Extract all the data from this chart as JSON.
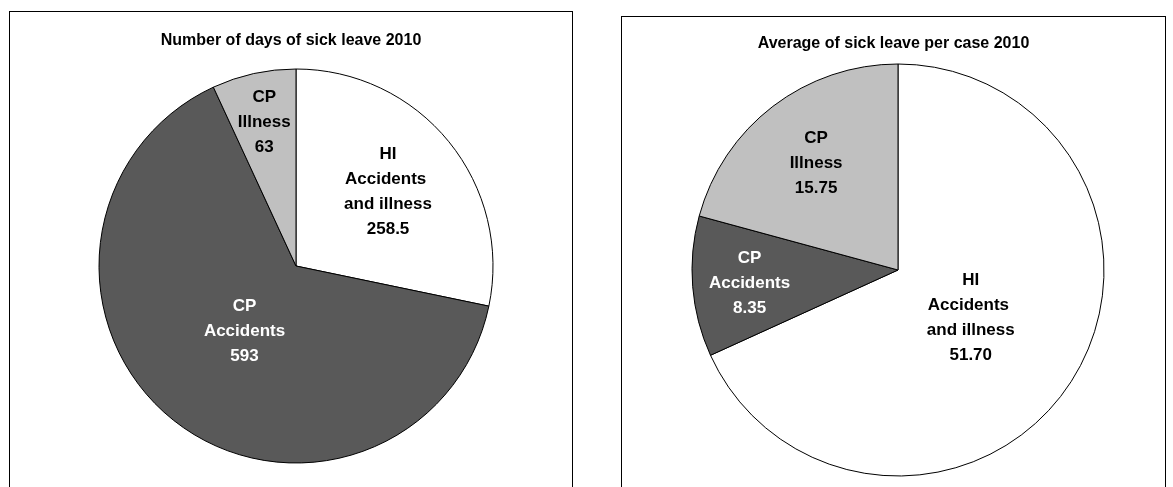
{
  "chart_data": [
    {
      "type": "pie",
      "title": "Number of days of sick leave 2010",
      "categories": [
        "HI Accidents and illness",
        "CP Accidents",
        "CP Illness"
      ],
      "values": [
        258.5,
        593,
        63
      ],
      "colors": [
        "#ffffff",
        "#595959",
        "#c0c0c0"
      ],
      "data_labels": true
    },
    {
      "type": "pie",
      "title": "Average of sick leave per case 2010",
      "categories": [
        "HI Accidents and illness",
        "CP Accidents",
        "CP Illness"
      ],
      "values": [
        51.7,
        8.35,
        15.75
      ],
      "value_labels": [
        "51.70",
        "8.35",
        "15.75"
      ],
      "colors": [
        "#ffffff",
        "#595959",
        "#c0c0c0"
      ]
    }
  ]
}
